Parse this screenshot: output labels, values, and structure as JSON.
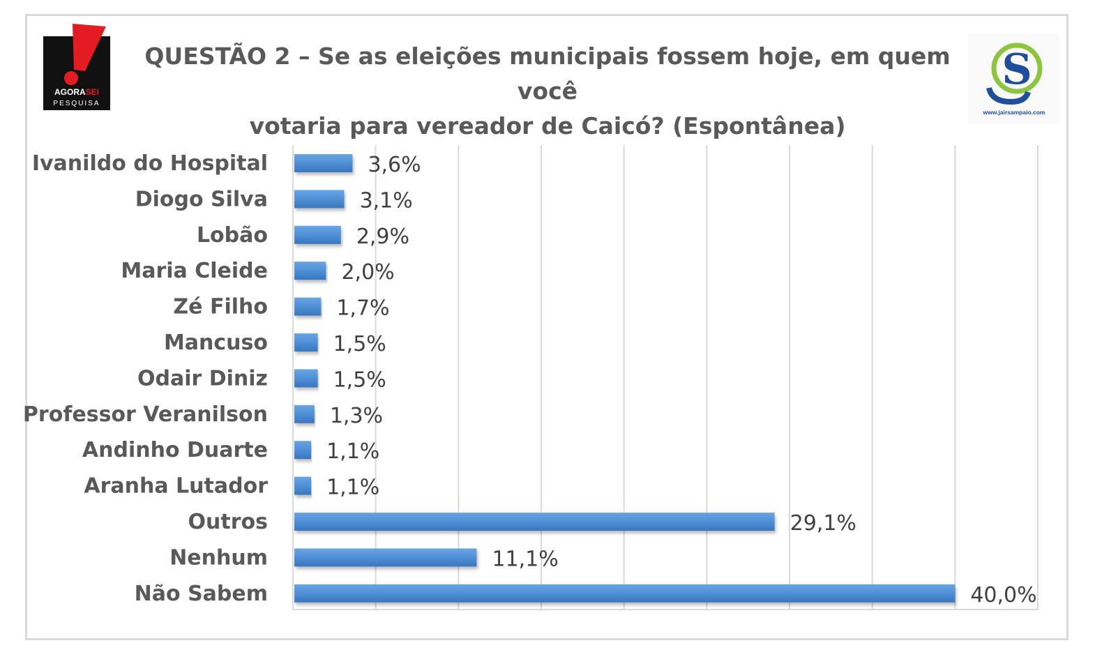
{
  "header": {
    "title_line1": "QUESTÃO 2 – Se as eleições municipais fossem hoje, em quem você",
    "title_line2": "votaria para vereador de Caicó? (Espontânea)",
    "left_logo": {
      "text_top": "AGORA",
      "text_accent": "SEI",
      "text_bottom": "PESQUISA",
      "icon": "exclamation-icon"
    },
    "right_logo": {
      "letter": "S",
      "url": "www.jairsampaio.com"
    }
  },
  "colors": {
    "bar": "#4f8fd6",
    "bar_dark": "#3a76bd",
    "grid": "#d9d9d9",
    "logo_red": "#e31b23",
    "logo_black": "#111111",
    "logo_green": "#8cc63f",
    "logo_blue": "#1f4e9c"
  },
  "chart_data": {
    "type": "bar",
    "orientation": "horizontal",
    "categories": [
      "Ivanildo do Hospital",
      "Diogo Silva",
      "Lobão",
      "Maria Cleide",
      "Zé Filho",
      "Mancuso",
      "Odair Diniz",
      "Professor Veranilson",
      "Andinho Duarte",
      "Aranha Lutador",
      "Outros",
      "Nenhum",
      "Não Sabem"
    ],
    "values": [
      3.6,
      3.1,
      2.9,
      2.0,
      1.7,
      1.5,
      1.5,
      1.3,
      1.1,
      1.1,
      29.1,
      11.1,
      40.0
    ],
    "data_labels": [
      "3,6%",
      "3,1%",
      "2,9%",
      "2,0%",
      "1,7%",
      "1,5%",
      "1,5%",
      "1,3%",
      "1,1%",
      "1,1%",
      "29,1%",
      "11,1%",
      "40,0%"
    ],
    "xlim": [
      0,
      45
    ],
    "grid": true,
    "legend": false
  }
}
